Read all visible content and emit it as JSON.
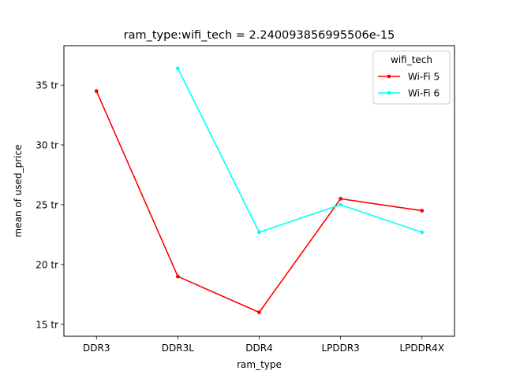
{
  "chart_data": {
    "type": "line",
    "title": "ram_type:wifi_tech = 2.240093856995506e-15",
    "xlabel": "ram_type",
    "ylabel": "mean of used_price",
    "categories": [
      "DDR3",
      "DDR3L",
      "DDR4",
      "LPDDR3",
      "LPDDR4X"
    ],
    "ylim": [
      14.0,
      38.3
    ],
    "yticks": [
      15,
      20,
      25,
      30,
      35
    ],
    "ytick_labels": [
      "15 tr",
      "20 tr",
      "25 tr",
      "30 tr",
      "35 tr"
    ],
    "grid": false,
    "legend": {
      "title": "wifi_tech",
      "position": "top-right"
    },
    "series": [
      {
        "name": "Wi-Fi 5",
        "color": "#ff0000",
        "values": [
          34.5,
          19.0,
          16.0,
          25.5,
          24.5
        ]
      },
      {
        "name": "Wi-Fi 6",
        "color": "#00ffff",
        "values": [
          null,
          36.4,
          22.7,
          25.0,
          22.7
        ]
      }
    ]
  }
}
